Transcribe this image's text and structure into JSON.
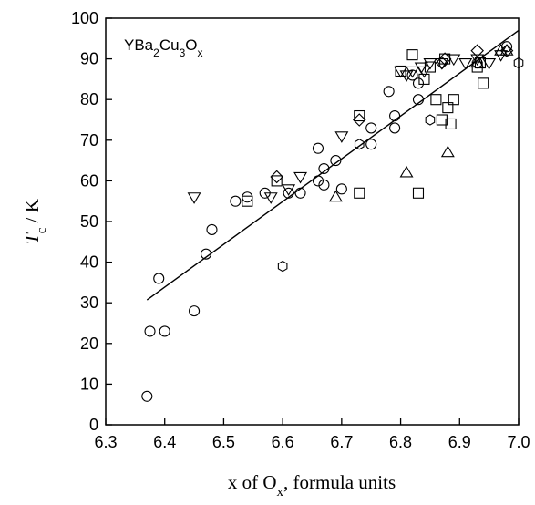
{
  "chart_data": {
    "type": "scatter",
    "xlim": [
      6.3,
      7.0
    ],
    "ylim": [
      0,
      100
    ],
    "x_ticks": [
      {
        "value": 6.3,
        "label": "6.3"
      },
      {
        "value": 6.4,
        "label": "6.4"
      },
      {
        "value": 6.5,
        "label": "6.5"
      },
      {
        "value": 6.6,
        "label": "6.6"
      },
      {
        "value": 6.7,
        "label": "6.7"
      },
      {
        "value": 6.8,
        "label": "6.8"
      },
      {
        "value": 6.9,
        "label": "6.9"
      },
      {
        "value": 7.0,
        "label": "7.0"
      }
    ],
    "y_ticks": [
      {
        "value": 0,
        "label": "0"
      },
      {
        "value": 10,
        "label": "10"
      },
      {
        "value": 20,
        "label": "20"
      },
      {
        "value": 30,
        "label": "30"
      },
      {
        "value": 40,
        "label": "40"
      },
      {
        "value": 50,
        "label": "50"
      },
      {
        "value": 60,
        "label": "60"
      },
      {
        "value": 70,
        "label": "70"
      },
      {
        "value": 80,
        "label": "80"
      },
      {
        "value": 90,
        "label": "90"
      },
      {
        "value": 100,
        "label": "100"
      }
    ],
    "xlabel": {
      "main": "x of O",
      "sub": "x",
      "rest": ", formula units"
    },
    "ylabel": {
      "main": "T",
      "sub": "c",
      "rest": " / K"
    },
    "annotation": [
      {
        "text": "YBa",
        "sub": false
      },
      {
        "text": "2",
        "sub": true
      },
      {
        "text": "Cu",
        "sub": false
      },
      {
        "text": "3",
        "sub": true
      },
      {
        "text": "O",
        "sub": false
      },
      {
        "text": "x",
        "sub": true
      }
    ],
    "grid": false,
    "fit_line": {
      "x": [
        6.37,
        7.0
      ],
      "y": [
        30.7,
        97
      ]
    },
    "series": [
      {
        "marker": "circle",
        "points": [
          [
            6.37,
            7
          ],
          [
            6.375,
            23
          ],
          [
            6.39,
            36
          ],
          [
            6.4,
            23
          ],
          [
            6.45,
            28
          ],
          [
            6.47,
            42
          ],
          [
            6.48,
            48
          ],
          [
            6.52,
            55
          ],
          [
            6.54,
            56
          ],
          [
            6.57,
            57
          ],
          [
            6.61,
            57
          ],
          [
            6.63,
            57
          ],
          [
            6.66,
            60
          ],
          [
            6.66,
            68
          ],
          [
            6.67,
            63
          ],
          [
            6.67,
            59
          ],
          [
            6.69,
            65
          ],
          [
            6.7,
            58
          ],
          [
            6.75,
            69
          ],
          [
            6.75,
            73
          ],
          [
            6.78,
            82
          ],
          [
            6.79,
            73
          ],
          [
            6.79,
            76
          ],
          [
            6.82,
            86
          ],
          [
            6.83,
            80
          ],
          [
            6.83,
            84
          ],
          [
            6.98,
            93
          ]
        ]
      },
      {
        "marker": "square",
        "points": [
          [
            6.54,
            55
          ],
          [
            6.59,
            60
          ],
          [
            6.73,
            57
          ],
          [
            6.73,
            76
          ],
          [
            6.8,
            87
          ],
          [
            6.82,
            91
          ],
          [
            6.83,
            57
          ],
          [
            6.84,
            85
          ],
          [
            6.85,
            88
          ],
          [
            6.86,
            80
          ],
          [
            6.87,
            75
          ],
          [
            6.875,
            90
          ],
          [
            6.88,
            78
          ],
          [
            6.885,
            74
          ],
          [
            6.89,
            80
          ],
          [
            6.93,
            88
          ],
          [
            6.935,
            89
          ],
          [
            6.94,
            84
          ]
        ]
      },
      {
        "marker": "triangle-down",
        "points": [
          [
            6.45,
            56
          ],
          [
            6.58,
            56
          ],
          [
            6.61,
            58
          ],
          [
            6.63,
            61
          ],
          [
            6.7,
            71
          ],
          [
            6.8,
            87
          ],
          [
            6.81,
            86
          ],
          [
            6.82,
            87
          ],
          [
            6.835,
            88
          ],
          [
            6.84,
            87
          ],
          [
            6.85,
            89
          ],
          [
            6.87,
            89
          ],
          [
            6.89,
            90
          ],
          [
            6.91,
            89
          ],
          [
            6.93,
            90
          ],
          [
            6.95,
            89
          ],
          [
            6.97,
            91
          ]
        ]
      },
      {
        "marker": "triangle-up",
        "points": [
          [
            6.69,
            56
          ],
          [
            6.81,
            62
          ],
          [
            6.88,
            67
          ],
          [
            6.93,
            89
          ],
          [
            6.97,
            92
          ],
          [
            6.98,
            92
          ]
        ]
      },
      {
        "marker": "diamond",
        "points": [
          [
            6.59,
            61
          ],
          [
            6.73,
            75
          ],
          [
            6.87,
            89
          ],
          [
            6.875,
            90
          ],
          [
            6.93,
            92
          ],
          [
            6.98,
            92
          ]
        ]
      },
      {
        "marker": "hexagon",
        "points": [
          [
            6.6,
            39
          ],
          [
            6.73,
            69
          ],
          [
            6.85,
            75
          ],
          [
            6.93,
            89
          ],
          [
            7.0,
            89
          ]
        ]
      }
    ]
  }
}
